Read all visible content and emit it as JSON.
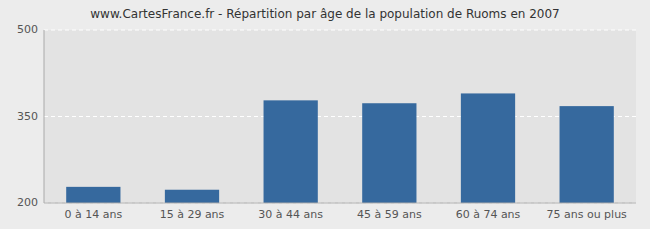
{
  "chart_data": {
    "type": "bar",
    "title": "www.CartesFrance.fr - Répartition par âge de la population de Ruoms en 2007",
    "categories": [
      "0 à 14 ans",
      "15 à 29 ans",
      "30 à 44 ans",
      "45 à 59 ans",
      "60 à 74 ans",
      "75 ans ou plus"
    ],
    "values": [
      228,
      223,
      378,
      373,
      390,
      368
    ],
    "color": "#36699e",
    "ylim": [
      200,
      500
    ],
    "yticks": [
      200,
      350,
      500
    ],
    "grid": true
  }
}
